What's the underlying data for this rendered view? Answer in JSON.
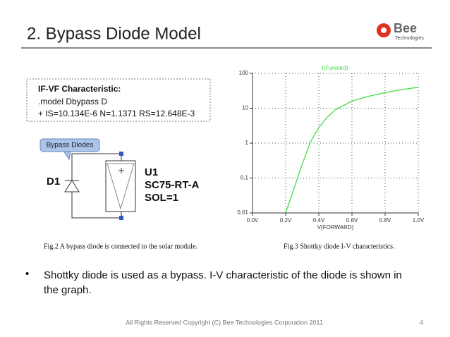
{
  "header": {
    "title": "2. Bypass Diode Model",
    "logo": "Bee",
    "logo_sub": "Technologies"
  },
  "model_box": {
    "lines": [
      "IF-VF Characteristic:",
      ".model Dbypass D",
      "+ IS=10.134E-6 N=1.1371 RS=12.648E-3"
    ]
  },
  "schematic": {
    "callout": "Bypass Diodes",
    "diode": "D1",
    "module_lines": [
      "U1",
      "SC75-RT-A",
      "SOL=1"
    ]
  },
  "chart_data": {
    "type": "line",
    "xlabel": "V(FORWARD)",
    "series": [
      {
        "name": "I(Forward)",
        "color": "#44dd44",
        "x": [
          0.2,
          0.25,
          0.3,
          0.35,
          0.4,
          0.45,
          0.5,
          0.6,
          0.7,
          0.8,
          0.9,
          1.0
        ],
        "values": [
          0.01,
          0.05,
          0.25,
          1.1,
          2.8,
          5.5,
          9,
          16,
          22,
          28,
          34,
          40
        ]
      }
    ],
    "xlim": [
      0,
      1
    ],
    "xticks": [
      {
        "value": 0,
        "label": "0.0V"
      },
      {
        "value": 0.2,
        "label": "0.2V"
      },
      {
        "value": 0.4,
        "label": "0.4V"
      },
      {
        "value": 0.6,
        "label": "0.6V"
      },
      {
        "value": 0.8,
        "label": "0.8V"
      },
      {
        "value": 1.0,
        "label": "1.0V"
      }
    ],
    "ylim": [
      0.01,
      100
    ],
    "yticks": [
      0.01,
      0.1,
      1,
      10,
      100
    ],
    "log_y": true,
    "grid": true
  },
  "captions": [
    "Fig.2 A bypass diode is connected to the solar module.",
    "Fig.3 Shottky diode I-V characteristics."
  ],
  "bullet": "Shottky diode is used as a bypass. I-V characteristic of the diode is shown in the graph.",
  "footer": {
    "copyright": "All Rights Reserved Copyright (C) Bee Technologies Corporation 2011",
    "page": "4"
  }
}
